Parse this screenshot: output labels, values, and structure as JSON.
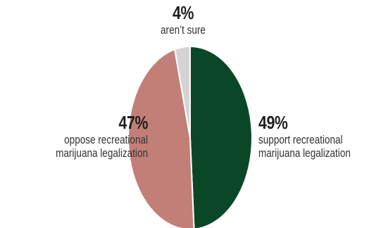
{
  "chart_data": {
    "type": "pie",
    "title": "",
    "slices": [
      {
        "key": "support",
        "value": 49,
        "pct_label": "49%",
        "line1": "support recreational",
        "line2": "marijuana legalization",
        "color": "#094727"
      },
      {
        "key": "oppose",
        "value": 47,
        "pct_label": "47%",
        "line1": "oppose recreational",
        "line2": "marijuana legalization",
        "color": "#c17f78"
      },
      {
        "key": "unsure",
        "value": 4,
        "pct_label": "4%",
        "line1": "aren’t sure",
        "line2": "",
        "color": "#d4d4d4"
      }
    ],
    "start_angle_deg": 0,
    "direction": "clockwise"
  }
}
